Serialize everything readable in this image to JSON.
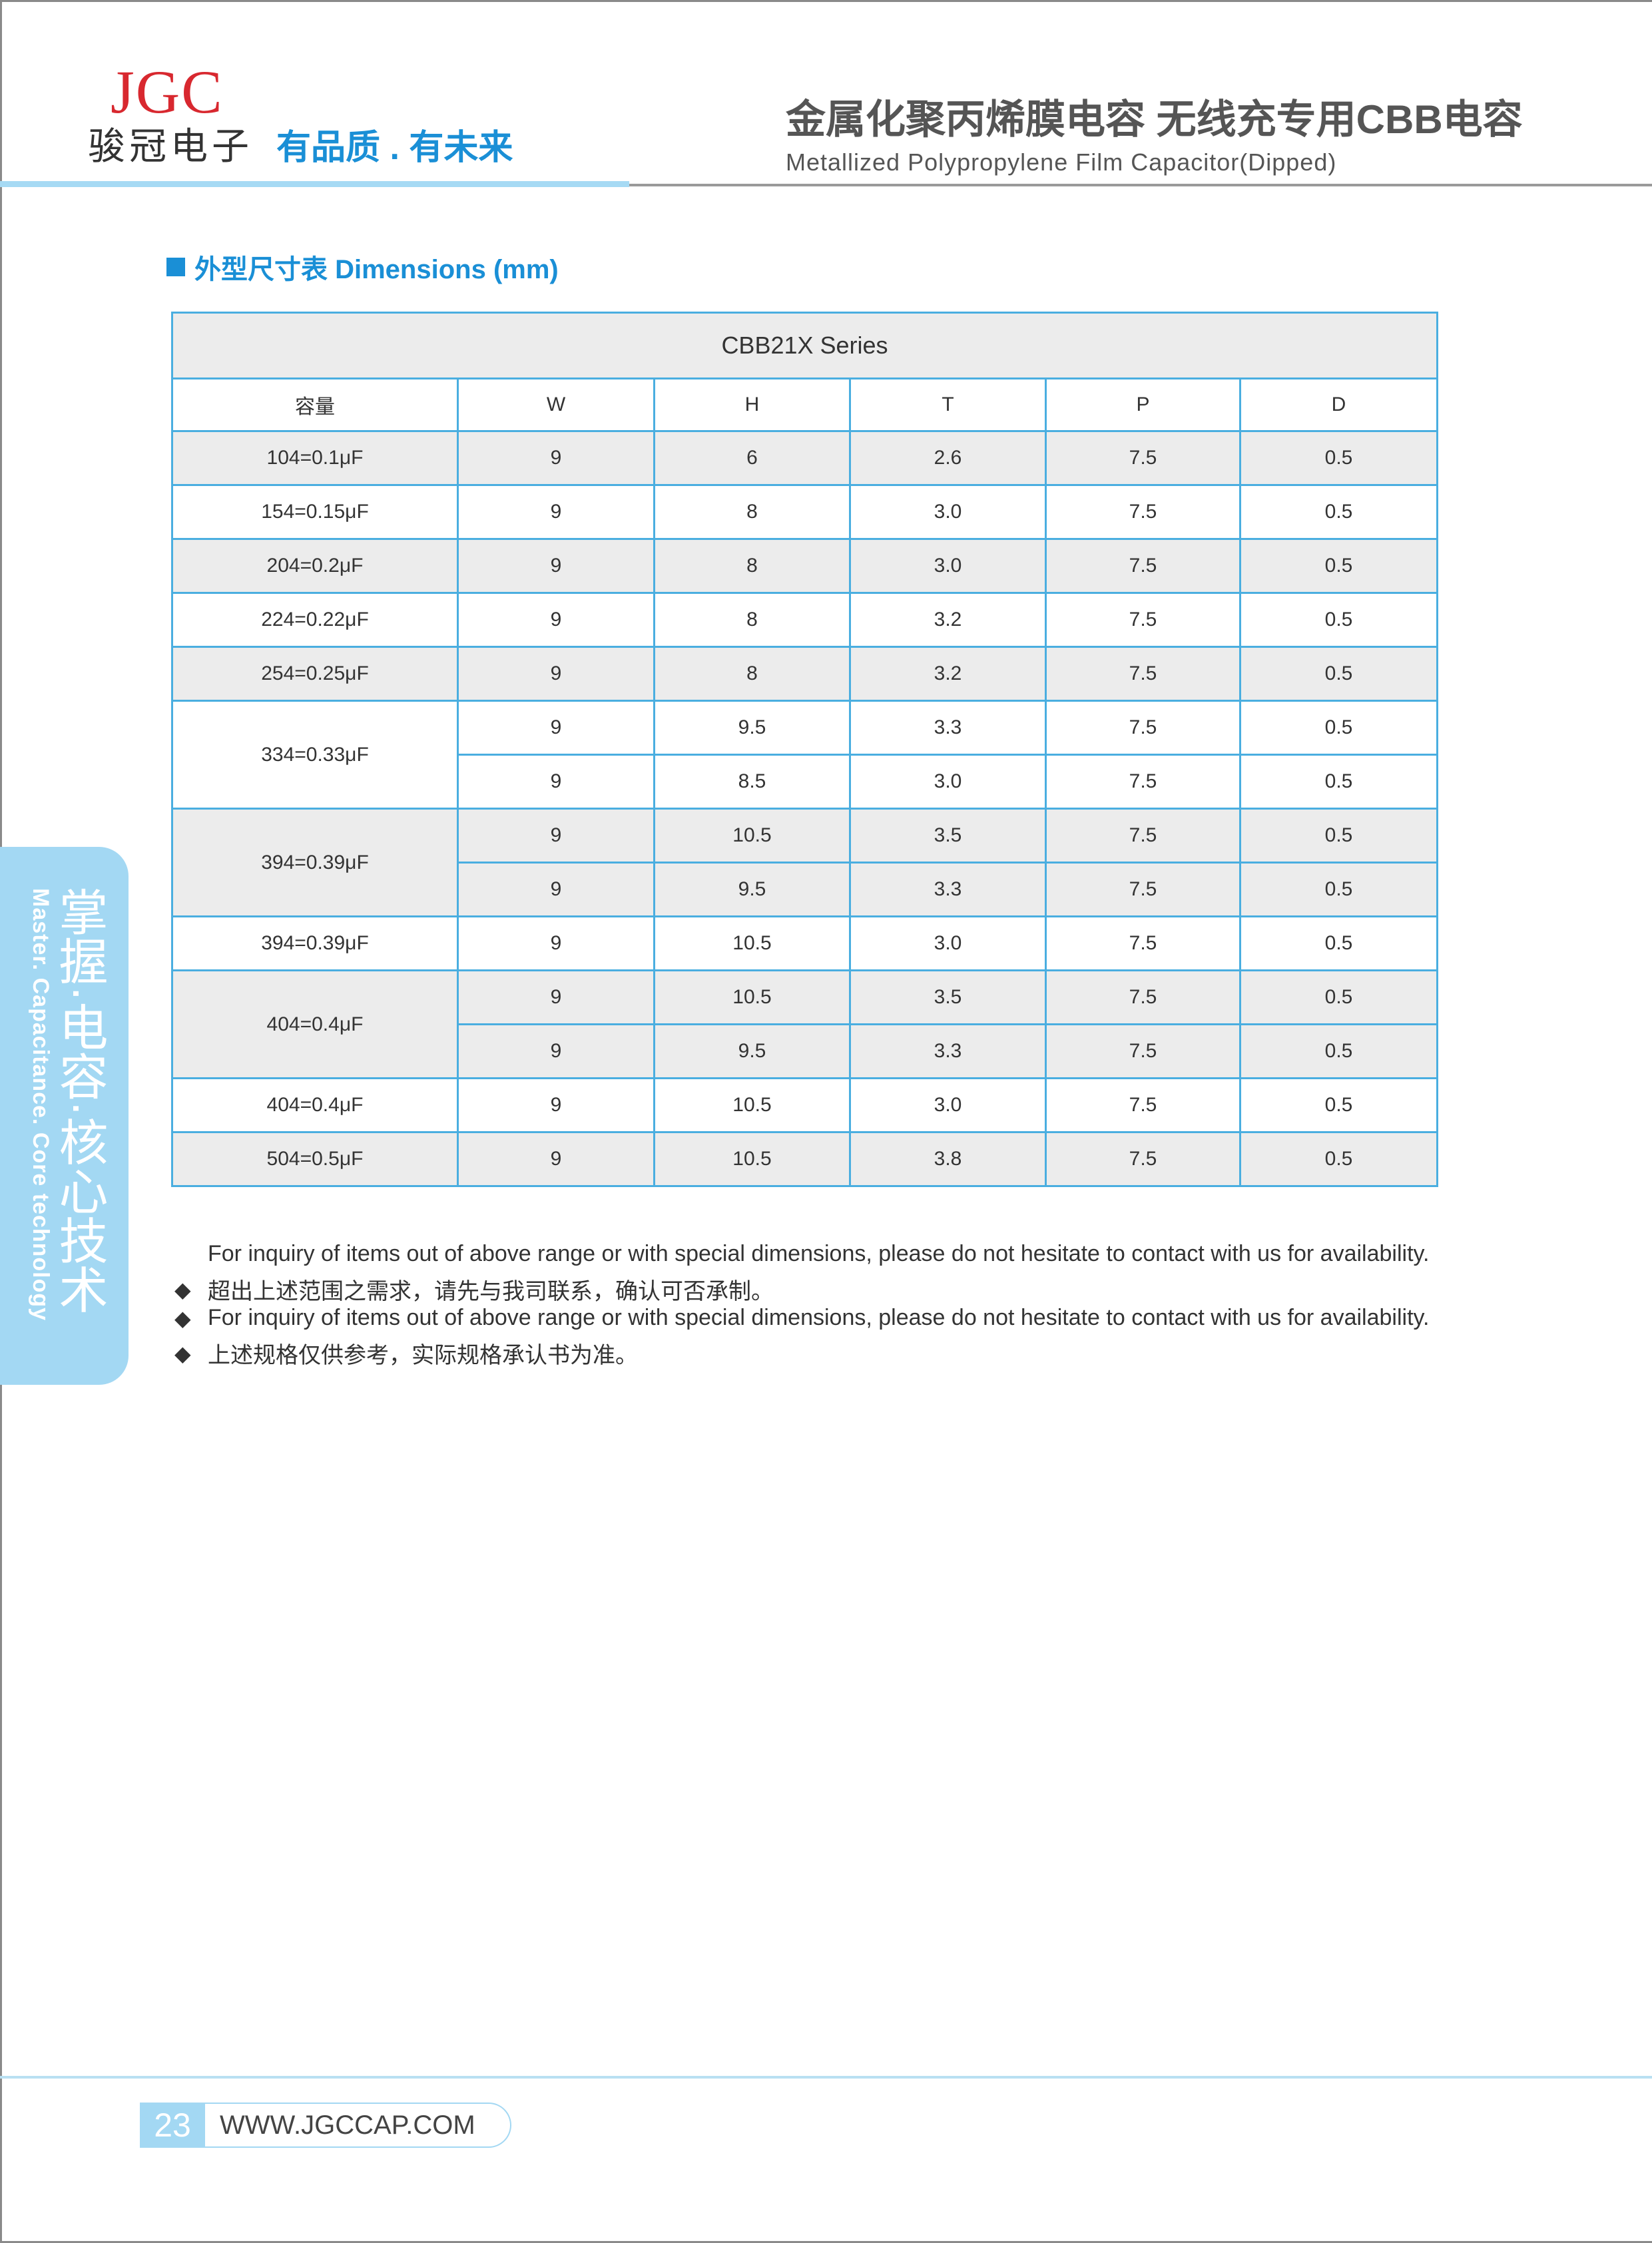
{
  "header": {
    "logo": "JGC",
    "company": "骏冠电子",
    "slogan": "有品质 . 有未来",
    "title_cn": "金属化聚丙烯膜电容 无线充专用CBB电容",
    "title_en": "Metallized Polypropylene Film Capacitor(Dipped)"
  },
  "section_title": "外型尺寸表 Dimensions (mm)",
  "table": {
    "series": "CBB21X Series",
    "columns": [
      "容量",
      "W",
      "H",
      "T",
      "P",
      "D"
    ],
    "groups": [
      {
        "capacitance": "104=0.1μF",
        "rows": [
          [
            "9",
            "6",
            "2.6",
            "7.5",
            "0.5"
          ]
        ]
      },
      {
        "capacitance": "154=0.15μF",
        "rows": [
          [
            "9",
            "8",
            "3.0",
            "7.5",
            "0.5"
          ]
        ]
      },
      {
        "capacitance": "204=0.2μF",
        "rows": [
          [
            "9",
            "8",
            "3.0",
            "7.5",
            "0.5"
          ]
        ]
      },
      {
        "capacitance": "224=0.22μF",
        "rows": [
          [
            "9",
            "8",
            "3.2",
            "7.5",
            "0.5"
          ]
        ]
      },
      {
        "capacitance": "254=0.25μF",
        "rows": [
          [
            "9",
            "8",
            "3.2",
            "7.5",
            "0.5"
          ]
        ]
      },
      {
        "capacitance": "334=0.33μF",
        "rows": [
          [
            "9",
            "9.5",
            "3.3",
            "7.5",
            "0.5"
          ],
          [
            "9",
            "8.5",
            "3.0",
            "7.5",
            "0.5"
          ]
        ]
      },
      {
        "capacitance": "394=0.39μF",
        "rows": [
          [
            "9",
            "10.5",
            "3.5",
            "7.5",
            "0.5"
          ],
          [
            "9",
            "9.5",
            "3.3",
            "7.5",
            "0.5"
          ]
        ]
      },
      {
        "capacitance": "394=0.39μF",
        "rows": [
          [
            "9",
            "10.5",
            "3.0",
            "7.5",
            "0.5"
          ]
        ]
      },
      {
        "capacitance": "404=0.4μF",
        "rows": [
          [
            "9",
            "10.5",
            "3.5",
            "7.5",
            "0.5"
          ],
          [
            "9",
            "9.5",
            "3.3",
            "7.5",
            "0.5"
          ]
        ]
      },
      {
        "capacitance": "404=0.4μF",
        "rows": [
          [
            "9",
            "10.5",
            "3.0",
            "7.5",
            "0.5"
          ]
        ]
      },
      {
        "capacitance": "504=0.5μF",
        "rows": [
          [
            "9",
            "10.5",
            "3.8",
            "7.5",
            "0.5"
          ]
        ]
      }
    ]
  },
  "notes": [
    {
      "bullet": false,
      "text": "For inquiry of items out of above range or with special dimensions, please do not hesitate to contact with us for availability."
    },
    {
      "bullet": true,
      "text": "超出上述范围之需求，请先与我司联系，确认可否承制。"
    },
    {
      "bullet": true,
      "text": "For inquiry of items out of above range or with special dimensions, please do not hesitate to contact with us for availability."
    },
    {
      "bullet": true,
      "text": "上述规格仅供参考，实际规格承认书为准。"
    }
  ],
  "side_tab": {
    "cn": "掌握·电容·核心技术",
    "en": "Master. Capacitance. Core technology"
  },
  "footer": {
    "page": "23",
    "url": "WWW.JGCCAP.COM"
  },
  "colors": {
    "brand_blue": "#1a8fd6",
    "tab_blue": "#a3d8f3",
    "logo_red": "#d8282f",
    "table_border": "#4aaee0",
    "row_shade": "#ececec"
  }
}
